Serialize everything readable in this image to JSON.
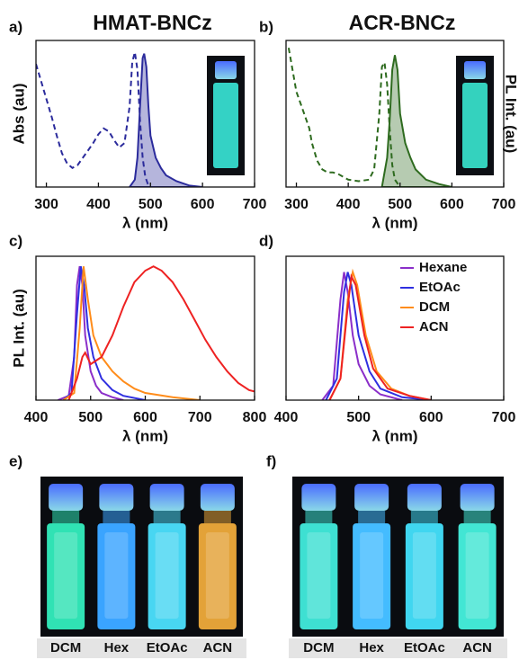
{
  "chart_data": [
    {
      "type": "line",
      "panel": "a)",
      "title": "HMAT-BNCz",
      "ylabel": "Abs (au)",
      "xlabel": "λ (nm)",
      "xlim": [
        280,
        700
      ],
      "xticks": [
        300,
        400,
        500,
        600,
        700
      ],
      "ylim": [
        0,
        1
      ],
      "series": [
        {
          "style": "dashed",
          "color": "#2b2b9c",
          "x": [
            280,
            290,
            300,
            310,
            320,
            330,
            340,
            350,
            360,
            370,
            380,
            390,
            400,
            410,
            420,
            430,
            440,
            450,
            460,
            465,
            470,
            475,
            480,
            485,
            490,
            495,
            500
          ],
          "values": [
            0.84,
            0.72,
            0.6,
            0.48,
            0.35,
            0.23,
            0.16,
            0.13,
            0.15,
            0.2,
            0.25,
            0.3,
            0.36,
            0.4,
            0.38,
            0.32,
            0.27,
            0.3,
            0.55,
            0.85,
            0.92,
            0.8,
            0.45,
            0.2,
            0.07,
            0.02,
            0
          ]
        },
        {
          "style": "filled",
          "color": "#2b2b9c",
          "x": [
            460,
            470,
            475,
            480,
            485,
            488,
            492,
            496,
            500,
            510,
            520,
            530,
            550,
            575,
            600
          ],
          "values": [
            0,
            0.05,
            0.2,
            0.55,
            0.88,
            0.91,
            0.82,
            0.55,
            0.35,
            0.2,
            0.13,
            0.08,
            0.04,
            0.01,
            0
          ]
        }
      ]
    },
    {
      "type": "line",
      "panel": "b)",
      "title": "ACR-BNCz",
      "y2label": "PL Int. (au)",
      "xlabel": "λ (nm)",
      "xlim": [
        280,
        700
      ],
      "xticks": [
        300,
        400,
        500,
        600,
        700
      ],
      "ylim": [
        0,
        1
      ],
      "series": [
        {
          "style": "dashed",
          "color": "#2e6b1f",
          "x": [
            285,
            290,
            300,
            310,
            320,
            325,
            330,
            340,
            350,
            360,
            370,
            380,
            390,
            400,
            420,
            440,
            450,
            460,
            465,
            470,
            475,
            480,
            485,
            490,
            500
          ],
          "values": [
            0.95,
            0.85,
            0.65,
            0.55,
            0.45,
            0.4,
            0.3,
            0.18,
            0.12,
            0.1,
            0.1,
            0.09,
            0.07,
            0.05,
            0.04,
            0.05,
            0.12,
            0.5,
            0.82,
            0.85,
            0.7,
            0.4,
            0.15,
            0.05,
            0
          ]
        },
        {
          "style": "filled",
          "color": "#2e6b1f",
          "x": [
            465,
            475,
            480,
            485,
            490,
            495,
            500,
            510,
            520,
            530,
            550,
            575,
            600
          ],
          "values": [
            0,
            0.2,
            0.45,
            0.8,
            0.9,
            0.8,
            0.5,
            0.3,
            0.2,
            0.12,
            0.05,
            0.02,
            0
          ]
        }
      ]
    },
    {
      "type": "line",
      "panel": "c)",
      "ylabel": "PL Int. (au)",
      "xlabel": "λ (nm)",
      "xlim": [
        400,
        800
      ],
      "xticks": [
        400,
        500,
        600,
        700,
        800
      ],
      "ylim": [
        0,
        1
      ],
      "series": [
        {
          "color": "#8b2fc9",
          "x": [
            440,
            460,
            470,
            475,
            480,
            485,
            490,
            500,
            510,
            520,
            540,
            560
          ],
          "values": [
            0,
            0.03,
            0.3,
            0.8,
            0.93,
            0.8,
            0.45,
            0.2,
            0.1,
            0.05,
            0.02,
            0
          ]
        },
        {
          "color": "#2f2fe0",
          "x": [
            450,
            465,
            475,
            482,
            488,
            495,
            505,
            520,
            540,
            560,
            600
          ],
          "values": [
            0,
            0.05,
            0.6,
            0.93,
            0.8,
            0.5,
            0.3,
            0.15,
            0.07,
            0.03,
            0
          ]
        },
        {
          "color": "#ff8c1a",
          "x": [
            450,
            470,
            480,
            487,
            495,
            505,
            520,
            540,
            560,
            580,
            600,
            650,
            700
          ],
          "values": [
            0,
            0.05,
            0.5,
            0.93,
            0.7,
            0.45,
            0.3,
            0.2,
            0.13,
            0.08,
            0.05,
            0.02,
            0
          ]
        },
        {
          "color": "#ee2222",
          "x": [
            460,
            475,
            485,
            490,
            500,
            520,
            540,
            560,
            580,
            600,
            615,
            630,
            650,
            670,
            690,
            710,
            730,
            750,
            770,
            790,
            800
          ],
          "values": [
            0,
            0.15,
            0.3,
            0.33,
            0.25,
            0.3,
            0.45,
            0.65,
            0.82,
            0.9,
            0.93,
            0.9,
            0.82,
            0.7,
            0.56,
            0.42,
            0.3,
            0.2,
            0.12,
            0.07,
            0.06
          ]
        }
      ]
    },
    {
      "type": "line",
      "panel": "d)",
      "xlabel": "λ (nm)",
      "legend": "upper right",
      "xlim": [
        400,
        700
      ],
      "xticks": [
        400,
        500,
        600,
        700
      ],
      "ylim": [
        0,
        1
      ],
      "series": [
        {
          "name": "Hexane",
          "color": "#8b2fc9",
          "x": [
            450,
            465,
            475,
            480,
            485,
            492,
            500,
            515,
            530,
            560
          ],
          "values": [
            0,
            0.1,
            0.7,
            0.89,
            0.75,
            0.45,
            0.25,
            0.1,
            0.04,
            0
          ]
        },
        {
          "name": "EtOAc",
          "color": "#2f2fe0",
          "x": [
            455,
            470,
            480,
            485,
            490,
            500,
            515,
            530,
            560,
            600
          ],
          "values": [
            0,
            0.15,
            0.75,
            0.89,
            0.8,
            0.45,
            0.2,
            0.08,
            0.02,
            0
          ]
        },
        {
          "name": "DCM",
          "color": "#ff8c1a",
          "x": [
            460,
            475,
            485,
            492,
            498,
            510,
            525,
            545,
            570,
            600
          ],
          "values": [
            0,
            0.15,
            0.7,
            0.89,
            0.8,
            0.45,
            0.2,
            0.08,
            0.03,
            0
          ]
        },
        {
          "name": "ACN",
          "color": "#ee2222",
          "x": [
            460,
            475,
            485,
            490,
            496,
            508,
            520,
            540,
            570,
            600
          ],
          "values": [
            0,
            0.15,
            0.65,
            0.86,
            0.8,
            0.45,
            0.22,
            0.08,
            0.03,
            0
          ]
        }
      ]
    }
  ],
  "photos": [
    {
      "panel": "e)",
      "labels": [
        "DCM",
        "Hex",
        "EtOAc",
        "ACN"
      ]
    },
    {
      "panel": "f)",
      "labels": [
        "DCM",
        "Hex",
        "EtOAc",
        "ACN"
      ]
    }
  ]
}
